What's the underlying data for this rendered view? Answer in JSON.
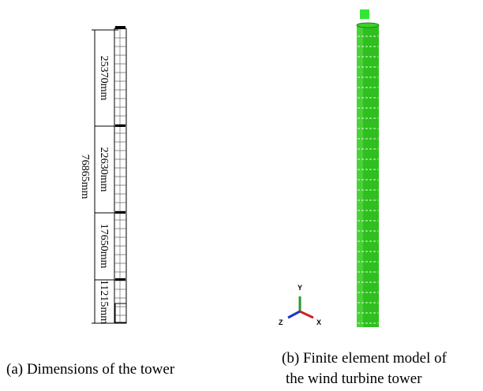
{
  "dimensions": {
    "total": "76865mm",
    "segments": [
      "25370mm",
      "22630mm",
      "17650mm",
      "11215mm"
    ]
  },
  "axes": {
    "y": "Y",
    "z": "Z",
    "x": "X"
  },
  "captions": {
    "a": "(a) Dimensions of the tower",
    "b_line1": "(b) Finite element model of",
    "b_line2": "the wind turbine tower"
  }
}
